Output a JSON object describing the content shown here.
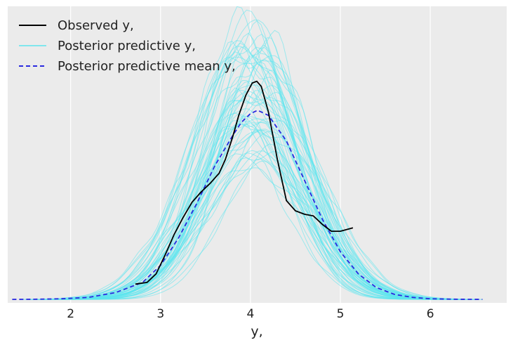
{
  "chart_data": {
    "type": "line",
    "title": "",
    "xlabel": "y,",
    "ylabel": "",
    "xlim": [
      1.3,
      6.85
    ],
    "ylim": [
      -0.02,
      1.72
    ],
    "grid": true,
    "grid_axis": "x",
    "legend_position": "top-left",
    "xticks": [
      2,
      3,
      4,
      5,
      6
    ],
    "legend": [
      {
        "label": "Observed y,",
        "color": "#000000",
        "style": "solid",
        "key": "observed"
      },
      {
        "label": "Posterior predictive y,",
        "color": "#5ce5ee",
        "style": "solid",
        "key": "predictive"
      },
      {
        "label": "Posterior predictive mean y,",
        "color": "#2a2ae0",
        "style": "dashed",
        "key": "mean"
      }
    ],
    "series": [
      {
        "name": "Observed y,",
        "color": "#000000",
        "style": "solid",
        "x": [
          2.72,
          2.85,
          2.95,
          3.05,
          3.15,
          3.25,
          3.35,
          3.45,
          3.55,
          3.65,
          3.72,
          3.8,
          3.87,
          3.95,
          4.02,
          4.07,
          4.12,
          4.2,
          4.3,
          4.4,
          4.5,
          4.6,
          4.7,
          4.8,
          4.9,
          5.0,
          5.14
        ],
        "y": [
          0.09,
          0.1,
          0.15,
          0.26,
          0.38,
          0.48,
          0.57,
          0.63,
          0.68,
          0.74,
          0.82,
          0.95,
          1.08,
          1.2,
          1.27,
          1.28,
          1.25,
          1.1,
          0.82,
          0.58,
          0.52,
          0.5,
          0.49,
          0.44,
          0.4,
          0.4,
          0.42
        ]
      },
      {
        "name": "Posterior predictive mean y,",
        "color": "#2a2ae0",
        "style": "dashed",
        "x": [
          1.35,
          1.6,
          1.9,
          2.2,
          2.5,
          2.8,
          3.0,
          3.2,
          3.4,
          3.6,
          3.8,
          3.9,
          4.0,
          4.08,
          4.2,
          4.4,
          4.6,
          4.8,
          5.0,
          5.2,
          5.4,
          5.6,
          5.8,
          6.0,
          6.3,
          6.58
        ],
        "y": [
          0.0,
          0.001,
          0.004,
          0.012,
          0.04,
          0.1,
          0.2,
          0.36,
          0.56,
          0.78,
          0.96,
          1.04,
          1.09,
          1.11,
          1.08,
          0.93,
          0.7,
          0.47,
          0.28,
          0.15,
          0.07,
          0.03,
          0.012,
          0.004,
          0.001,
          0.0
        ]
      }
    ],
    "posterior_predictive": {
      "name": "Posterior predictive y,",
      "color": "#5ce5ee",
      "n_draws": 60,
      "x_range": [
        1.45,
        6.6
      ],
      "center": 4.05,
      "sd": 0.55,
      "peak_range": [
        0.75,
        1.6
      ]
    }
  }
}
